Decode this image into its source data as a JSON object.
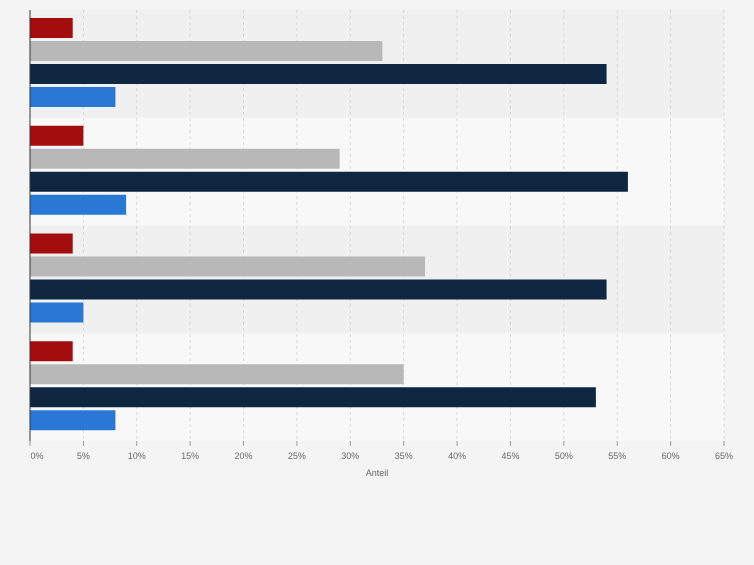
{
  "chart_data": {
    "type": "bar",
    "orientation": "horizontal",
    "title": "",
    "xlabel": "Anteil",
    "ylabel": "",
    "xlim": [
      0,
      65
    ],
    "x_ticks": [
      "0%",
      "5%",
      "10%",
      "15%",
      "20%",
      "25%",
      "30%",
      "35%",
      "40%",
      "45%",
      "50%",
      "55%",
      "60%",
      "65%"
    ],
    "grid": true,
    "legend": "none",
    "categories": [
      "",
      "",
      "",
      ""
    ],
    "series": [
      {
        "color": "#a30d0d",
        "values": [
          4,
          5,
          4,
          4
        ]
      },
      {
        "color": "#b8b8b8",
        "values": [
          33,
          29,
          37,
          35
        ]
      },
      {
        "color": "#0f2640",
        "values": [
          54,
          56,
          54,
          53
        ]
      },
      {
        "color": "#2a78d6",
        "values": [
          8,
          9,
          5,
          8
        ]
      }
    ]
  }
}
